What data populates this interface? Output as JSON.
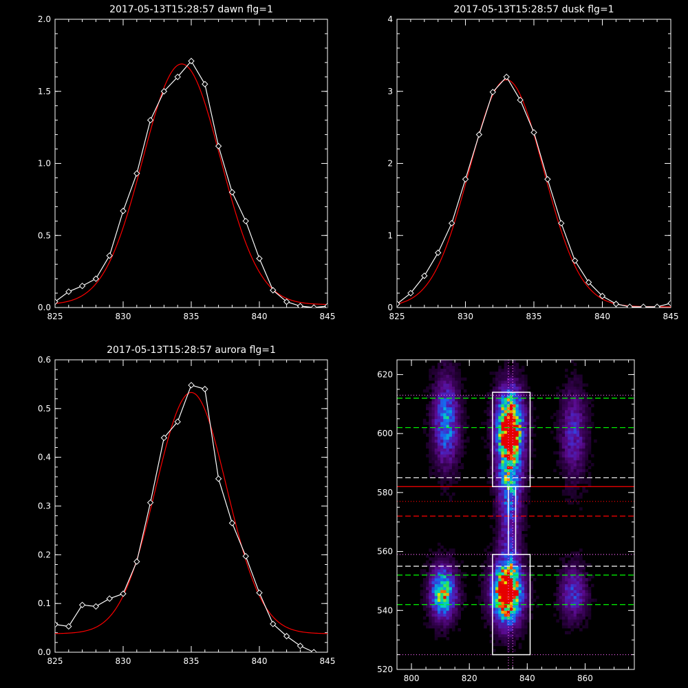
{
  "chart_data": [
    {
      "type": "line",
      "title": "2017-05-13T15:28:57 dawn flg=1",
      "xlim": [
        825,
        845
      ],
      "ylim": [
        0,
        2.0
      ],
      "xticks": [
        825,
        830,
        835,
        840,
        845
      ],
      "yticks": [
        0.0,
        0.5,
        1.0,
        1.5,
        2.0
      ],
      "ytick_labels": [
        "0.0",
        "0.5",
        "1.0",
        "1.5",
        "2.0"
      ],
      "series": [
        {
          "style": "data",
          "color": "#ffffff",
          "x": [
            825,
            826,
            827,
            828,
            829,
            830,
            831,
            832,
            833,
            834,
            835,
            836,
            837,
            838,
            839,
            840,
            841,
            842,
            843,
            844,
            845
          ],
          "y": [
            0.04,
            0.11,
            0.15,
            0.2,
            0.36,
            0.67,
            0.93,
            1.3,
            1.5,
            1.6,
            1.71,
            1.55,
            1.12,
            0.8,
            0.6,
            0.34,
            0.12,
            0.04,
            0.01,
            0.0,
            0.01
          ]
        },
        {
          "style": "fit",
          "color": "#ff0000",
          "gauss": {
            "amp": 1.67,
            "center": 834.3,
            "sigma": 2.85,
            "offset": 0.02
          }
        }
      ]
    },
    {
      "type": "line",
      "title": "2017-05-13T15:28:57 dusk flg=1",
      "xlim": [
        825,
        845
      ],
      "ylim": [
        0,
        4
      ],
      "xticks": [
        825,
        830,
        835,
        840,
        845
      ],
      "yticks": [
        0,
        1,
        2,
        3,
        4
      ],
      "ytick_labels": [
        "0",
        "1",
        "2",
        "3",
        "4"
      ],
      "series": [
        {
          "style": "data",
          "color": "#ffffff",
          "x": [
            825,
            826,
            827,
            828,
            829,
            830,
            831,
            832,
            833,
            834,
            835,
            836,
            837,
            838,
            839,
            840,
            841,
            842,
            843,
            844,
            845
          ],
          "y": [
            0.05,
            0.2,
            0.44,
            0.76,
            1.17,
            1.78,
            2.4,
            2.99,
            3.2,
            2.88,
            2.43,
            1.78,
            1.17,
            0.65,
            0.35,
            0.16,
            0.05,
            0.01,
            0.01,
            0.01,
            0.06
          ]
        },
        {
          "style": "fit",
          "color": "#ff0000",
          "gauss": {
            "amp": 3.15,
            "center": 833.0,
            "sigma": 2.7,
            "offset": 0.01
          }
        }
      ]
    },
    {
      "type": "line",
      "title": "2017-05-13T15:28:57 aurora flg=1",
      "xlim": [
        825,
        845
      ],
      "ylim": [
        0,
        0.6
      ],
      "xticks": [
        825,
        830,
        835,
        840,
        845
      ],
      "yticks": [
        0.0,
        0.1,
        0.2,
        0.3,
        0.4,
        0.5,
        0.6
      ],
      "ytick_labels": [
        "0.0",
        "0.1",
        "0.2",
        "0.3",
        "0.4",
        "0.5",
        "0.6"
      ],
      "series": [
        {
          "style": "data",
          "color": "#ffffff",
          "x": [
            825,
            826,
            827,
            828,
            829,
            830,
            831,
            832,
            833,
            834,
            835,
            836,
            837,
            838,
            839,
            840,
            841,
            842,
            843,
            844
          ],
          "y": [
            0.057,
            0.053,
            0.097,
            0.094,
            0.11,
            0.12,
            0.186,
            0.307,
            0.44,
            0.473,
            0.548,
            0.54,
            0.356,
            0.265,
            0.197,
            0.122,
            0.058,
            0.033,
            0.013,
            0.0
          ]
        },
        {
          "style": "fit",
          "color": "#ff0000",
          "gauss": {
            "amp": 0.495,
            "center": 835.0,
            "sigma": 2.6,
            "offset": 0.038
          }
        }
      ]
    },
    {
      "type": "heatmap",
      "xlim": [
        795,
        877
      ],
      "ylim": [
        520,
        625
      ],
      "xticks": [
        800,
        820,
        840,
        860
      ],
      "yticks": [
        520,
        540,
        560,
        580,
        600,
        620
      ],
      "blobs": [
        {
          "x": 812,
          "y": 604,
          "sx": 3.0,
          "sy": 10,
          "v": 0.55
        },
        {
          "x": 811,
          "y": 546,
          "sx": 3.0,
          "sy": 6,
          "v": 0.8
        },
        {
          "x": 834,
          "y": 604,
          "sx": 3.2,
          "sy": 8,
          "v": 0.95
        },
        {
          "x": 834,
          "y": 590,
          "sx": 3.0,
          "sy": 10,
          "v": 0.6
        },
        {
          "x": 834,
          "y": 568,
          "sx": 2.5,
          "sy": 14,
          "v": 0.3
        },
        {
          "x": 833,
          "y": 546,
          "sx": 3.5,
          "sy": 7,
          "v": 1.25
        },
        {
          "x": 856,
          "y": 600,
          "sx": 3.0,
          "sy": 10,
          "v": 0.35
        },
        {
          "x": 856,
          "y": 546,
          "sx": 3.0,
          "sy": 6,
          "v": 0.4
        }
      ],
      "boxes": [
        {
          "x0": 828,
          "x1": 841,
          "y0": 582,
          "y1": 614,
          "color": "#ffffff"
        },
        {
          "x0": 828,
          "x1": 841,
          "y0": 525,
          "y1": 559,
          "color": "#ffffff"
        },
        {
          "x0": 833.5,
          "x1": 836,
          "y0": 559,
          "y1": 582,
          "color": "#ffffff"
        }
      ],
      "hlines": [
        {
          "y": 613,
          "color": "#ff66ff",
          "dash": "dot"
        },
        {
          "y": 612,
          "color": "#00ff00",
          "dash": "long"
        },
        {
          "y": 602,
          "color": "#00ff00",
          "dash": "long"
        },
        {
          "y": 585,
          "color": "#ffffff",
          "dash": "long"
        },
        {
          "y": 582,
          "color": "#ff0000",
          "dash": "solid"
        },
        {
          "y": 577,
          "color": "#ff0000",
          "dash": "dot"
        },
        {
          "y": 572,
          "color": "#ff0000",
          "dash": "long"
        },
        {
          "y": 559,
          "color": "#ff66ff",
          "dash": "dot"
        },
        {
          "y": 555,
          "color": "#ffffff",
          "dash": "long"
        },
        {
          "y": 552,
          "color": "#00ff00",
          "dash": "long"
        },
        {
          "y": 542,
          "color": "#00ff00",
          "dash": "long"
        },
        {
          "y": 525,
          "color": "#ff66ff",
          "dash": "dot"
        }
      ],
      "vlines": [
        {
          "x": 833.5,
          "color": "#ff66ff",
          "dash": "dot"
        },
        {
          "x": 835,
          "color": "#ff66ff",
          "dash": "dot"
        }
      ]
    }
  ]
}
